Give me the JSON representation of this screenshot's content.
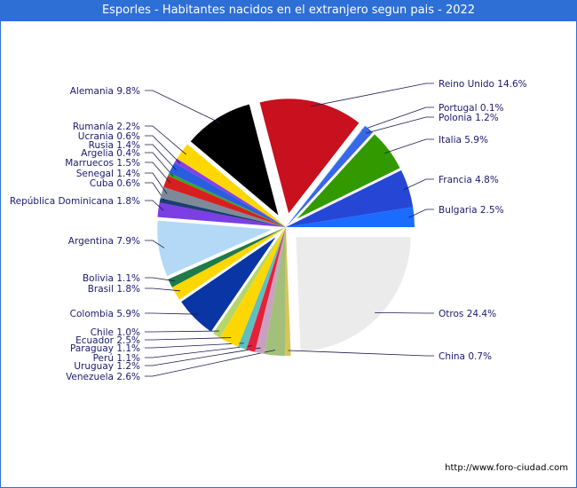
{
  "title": "Esporles - Habitantes nacidos en el extranjero segun pais - 2022",
  "source": "http://www.foro-ciudad.com",
  "chart_data": {
    "type": "pie",
    "title": "Esporles - Habitantes nacidos en el extranjero segun pais - 2022",
    "slices": [
      {
        "label": "Otros 24.4%",
        "value": 24.4,
        "color": "#ebebeb",
        "side": "right"
      },
      {
        "label": "China 0.7%",
        "value": 0.7,
        "color": "#d8c55a",
        "side": "right"
      },
      {
        "label": "Venezuela 2.6%",
        "value": 2.6,
        "color": "#a2c07a",
        "side": "left"
      },
      {
        "label": "Uruguay 1.2%",
        "value": 1.2,
        "color": "#c9a0c0",
        "side": "left"
      },
      {
        "label": "Perú 1.1%",
        "value": 1.1,
        "color": "#e5203a",
        "side": "left"
      },
      {
        "label": "Paraguay 1.1%",
        "value": 1.1,
        "color": "#5fbfbf",
        "side": "left"
      },
      {
        "label": "Ecuador 2.5%",
        "value": 2.5,
        "color": "#ffd700",
        "side": "left"
      },
      {
        "label": "Chile 1.0%",
        "value": 1.0,
        "color": "#b5d66a",
        "side": "left"
      },
      {
        "label": "Colombia 5.9%",
        "value": 5.9,
        "color": "#0a35a5",
        "side": "left"
      },
      {
        "label": "Brasil 1.8%",
        "value": 1.8,
        "color": "#ffd700",
        "side": "left"
      },
      {
        "label": "Bolivia 1.1%",
        "value": 1.1,
        "color": "#1f7a4a",
        "side": "left"
      },
      {
        "label": "Argentina 7.9%",
        "value": 7.9,
        "color": "#b3d9f7",
        "side": "left"
      },
      {
        "label": "República Dominicana 1.8%",
        "value": 1.8,
        "color": "#7b3fe4",
        "side": "left"
      },
      {
        "label": "Cuba 0.6%",
        "value": 0.6,
        "color": "#1c3f73",
        "side": "left"
      },
      {
        "label": "Senegal 1.4%",
        "value": 1.4,
        "color": "#7d8b99",
        "side": "left"
      },
      {
        "label": "Marruecos 1.5%",
        "value": 1.5,
        "color": "#d81f1f",
        "side": "left"
      },
      {
        "label": "Argelia 0.4%",
        "value": 0.4,
        "color": "#36a82c",
        "side": "left"
      },
      {
        "label": "Rusia 1.4%",
        "value": 1.4,
        "color": "#2b5de0",
        "side": "left"
      },
      {
        "label": "Ucrania 0.6%",
        "value": 0.6,
        "color": "#8a3fe0",
        "side": "left"
      },
      {
        "label": "Rumanía 2.2%",
        "value": 2.2,
        "color": "#ffd700",
        "side": "left"
      },
      {
        "label": "Alemania 9.8%",
        "value": 9.8,
        "color": "#000000",
        "side": "left"
      },
      {
        "label": "Reino Unido 14.6%",
        "value": 14.6,
        "color": "#c8101f",
        "side": "right"
      },
      {
        "label": "Portugal 0.1%",
        "value": 0.1,
        "color": "#5cc0e8",
        "side": "right"
      },
      {
        "label": "Polonia 1.2%",
        "value": 1.2,
        "color": "#3a66e8",
        "side": "right"
      },
      {
        "label": "Italia 5.9%",
        "value": 5.9,
        "color": "#339900",
        "side": "right"
      },
      {
        "label": "Francia 4.8%",
        "value": 4.8,
        "color": "#2646d6",
        "side": "right"
      },
      {
        "label": "Bulgaria 2.5%",
        "value": 2.5,
        "color": "#1a6bff",
        "side": "right"
      }
    ]
  }
}
